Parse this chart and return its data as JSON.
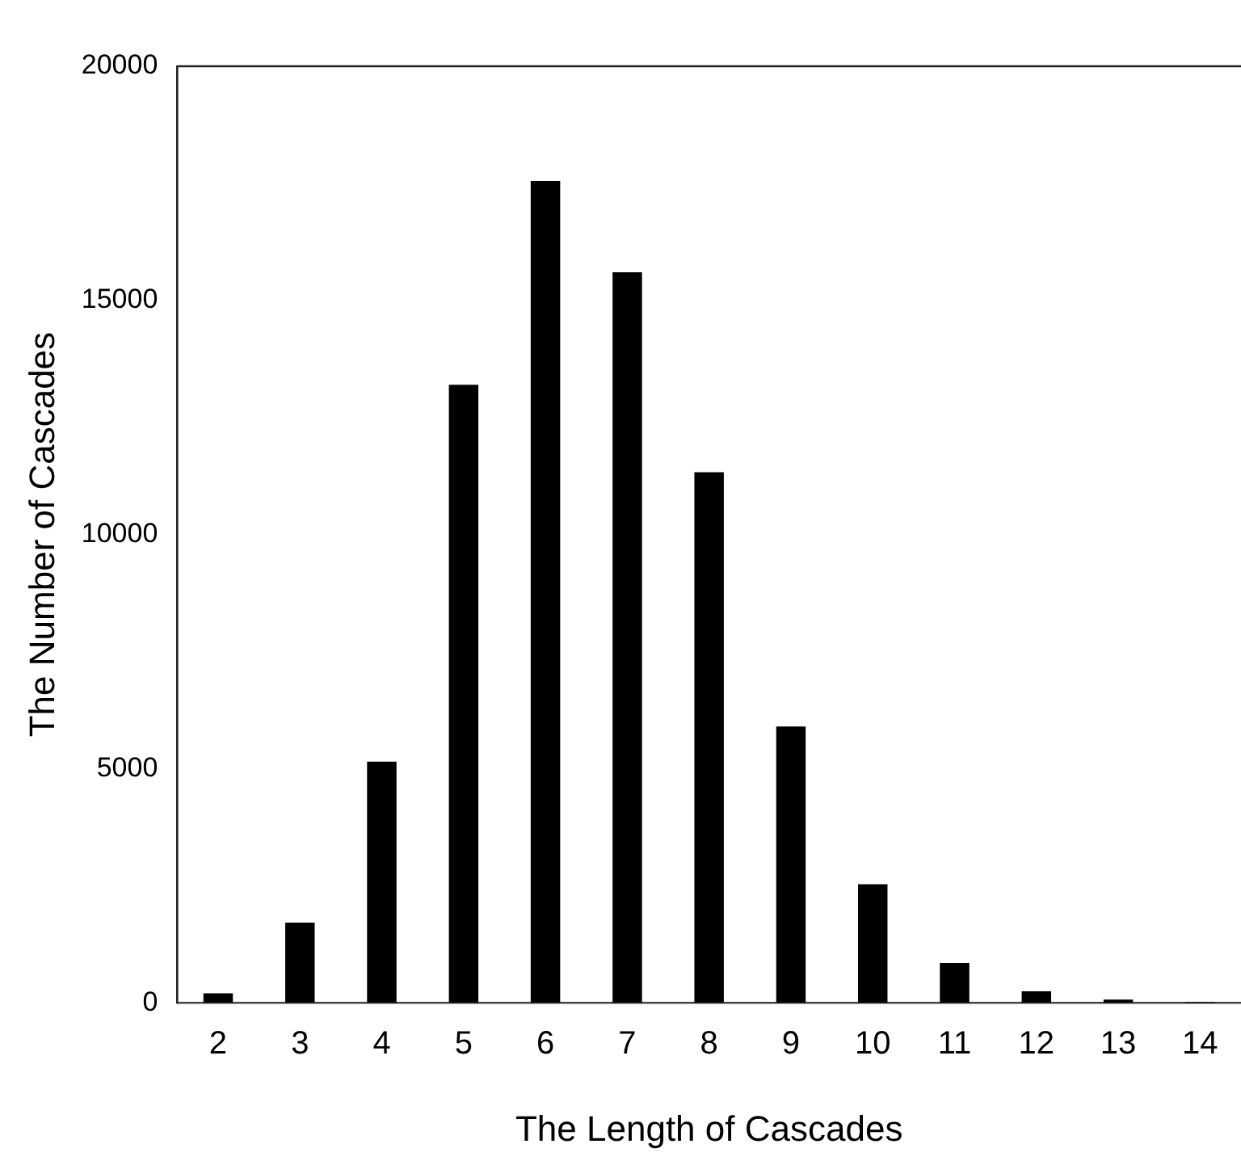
{
  "chart_data": {
    "type": "bar",
    "xlabel": "The Length of Cascades",
    "ylabel": "The Number of Cascades",
    "categories": [
      "2",
      "3",
      "4",
      "5",
      "6",
      "7",
      "8",
      "9",
      "10",
      "11",
      "12",
      "13",
      "14"
    ],
    "values": [
      200,
      1710,
      5150,
      13200,
      17550,
      15600,
      11330,
      5900,
      2530,
      850,
      245,
      70,
      15
    ],
    "color": "#000000",
    "ylim": [
      0,
      20000
    ],
    "yticks": [
      0,
      5000,
      10000,
      15000,
      20000
    ],
    "grid": false,
    "legend": false
  }
}
